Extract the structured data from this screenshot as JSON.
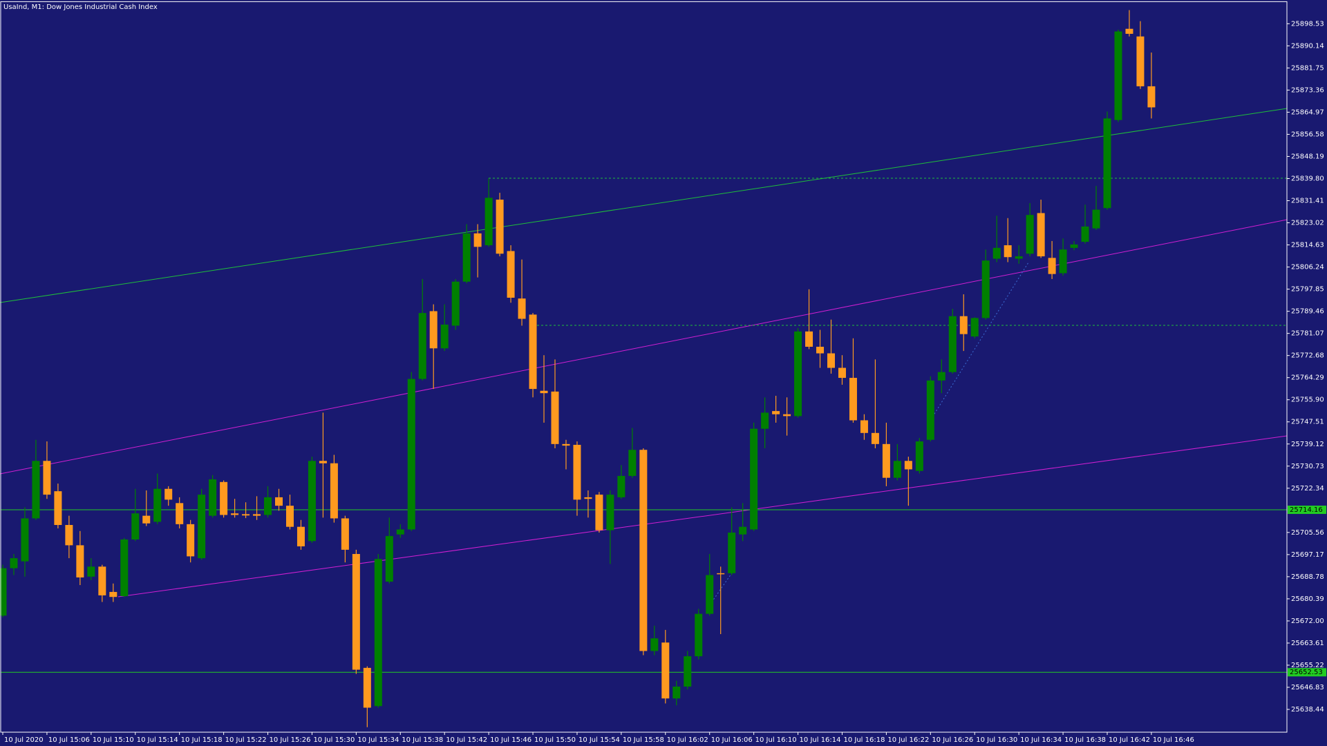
{
  "chart_data": {
    "type": "candlestick",
    "title": "UsaInd, M1:  Dow Jones Industrial Cash Index",
    "categories": [
      "10 Jul 2020",
      null,
      null,
      null,
      "10 Jul 15:06",
      null,
      null,
      null,
      "10 Jul 15:10",
      null,
      null,
      null,
      "10 Jul 15:14",
      null,
      null,
      null,
      "10 Jul 15:18",
      null,
      null,
      null,
      "10 Jul 15:22",
      null,
      null,
      null,
      "10 Jul 15:26",
      null,
      null,
      null,
      "10 Jul 15:30",
      null,
      null,
      null,
      "10 Jul 15:34",
      null,
      null,
      null,
      "10 Jul 15:38",
      null,
      null,
      null,
      "10 Jul 15:42",
      null,
      null,
      null,
      "10 Jul 15:46",
      null,
      null,
      null,
      "10 Jul 15:50",
      null,
      null,
      null,
      "10 Jul 15:54",
      null,
      null,
      null,
      "10 Jul 15:58",
      null,
      null,
      null,
      "10 Jul 16:02",
      null,
      null,
      null,
      "10 Jul 16:06",
      null,
      null,
      null,
      "10 Jul 16:10",
      null,
      null,
      null,
      "10 Jul 16:14",
      null,
      null,
      null,
      "10 Jul 16:18",
      null,
      null,
      null,
      "10 Jul 16:22",
      null,
      null,
      null,
      "10 Jul 16:26",
      null,
      null,
      null,
      "10 Jul 16:30",
      null,
      null,
      null,
      "10 Jul 16:34",
      null,
      null,
      null,
      "10 Jul 16:38",
      null,
      null,
      null,
      "10 Jul 16:42",
      null,
      null,
      null,
      "10 Jul 16:46"
    ],
    "open": [
      25674.0,
      25692.0,
      25694.6,
      25710.9,
      25732.7,
      25721.2,
      25708.4,
      25700.7,
      25688.8,
      25692.6,
      25683.0,
      25681.4,
      25702.9,
      25711.9,
      25709.6,
      25722.1,
      25716.7,
      25708.7,
      25695.8,
      25711.9,
      25724.7,
      25712.8,
      25712.5,
      25712.5,
      25712.2,
      25718.9,
      25715.7,
      25707.7,
      25702.3,
      25732.7,
      25731.8,
      25710.9,
      25697.4,
      25654.2,
      25639.7,
      25686.9,
      25704.8,
      25706.7,
      25763.8,
      25789.5,
      25775.4,
      25784.0,
      25800.7,
      25819.0,
      25814.5,
      25831.8,
      25812.3,
      25794.3,
      25788.2,
      25759.3,
      25759.0,
      25739.1,
      25738.8,
      25718.9,
      25719.9,
      25706.4,
      25718.9,
      25727.0,
      25736.9,
      25660.6,
      25663.8,
      25642.6,
      25647.1,
      25658.6,
      25674.7,
      25690.1,
      25690.1,
      25704.8,
      25706.7,
      25744.9,
      25751.6,
      25750.4,
      25749.7,
      25781.8,
      25776.0,
      25773.5,
      25768.0,
      25764.2,
      25748.1,
      25743.3,
      25739.1,
      25726.3,
      25732.7,
      25728.9,
      25740.7,
      25763.2,
      25766.4,
      25787.6,
      25779.9,
      25786.9,
      25809.4,
      25814.5,
      25809.4,
      25811.3,
      25826.7,
      25809.7,
      25803.9,
      25813.5,
      25815.8,
      25820.9,
      25828.6,
      25862.0,
      25896.6,
      25893.7,
      25874.8
    ],
    "high": [
      25693.3,
      25697.4,
      25715.1,
      25740.7,
      25740.1,
      25724.1,
      25711.9,
      25706.1,
      25695.8,
      25693.3,
      25686.2,
      25703.5,
      25722.1,
      25721.5,
      25727.9,
      25723.1,
      25718.9,
      25710.3,
      25722.1,
      25727.3,
      25725.3,
      25718.3,
      25717.0,
      25719.3,
      25723.1,
      25722.1,
      25719.9,
      25710.3,
      25734.3,
      25751.0,
      25735.0,
      25711.9,
      25699.0,
      25654.8,
      25697.4,
      25711.2,
      25708.7,
      25766.4,
      25801.7,
      25792.1,
      25792.1,
      25801.7,
      25822.5,
      25822.5,
      25839.8,
      25834.4,
      25814.5,
      25809.1,
      25788.8,
      25772.8,
      25771.2,
      25740.7,
      25740.1,
      25721.5,
      25720.9,
      25721.5,
      25731.1,
      25745.2,
      25737.5,
      25670.2,
      25668.6,
      25649.3,
      25660.6,
      25676.6,
      25697.4,
      25692.6,
      25715.1,
      25716.7,
      25747.2,
      25756.8,
      25757.4,
      25756.8,
      25783.1,
      25797.8,
      25782.4,
      25786.3,
      25772.8,
      25779.2,
      25750.4,
      25771.2,
      25747.2,
      25739.1,
      25734.3,
      25741.4,
      25764.8,
      25771.2,
      25790.4,
      25795.9,
      25787.2,
      25812.9,
      25825.7,
      25824.8,
      25814.5,
      25830.5,
      25831.8,
      25816.1,
      25817.1,
      25816.1,
      25829.9,
      25837.0,
      25865.2,
      25896.3,
      25903.7,
      25899.5,
      25887.6
    ],
    "low": [
      25673.4,
      25689.4,
      25688.8,
      25710.3,
      25718.3,
      25707.1,
      25695.8,
      25685.6,
      25687.5,
      25679.2,
      25679.2,
      25681.1,
      25702.3,
      25708.0,
      25708.7,
      25715.7,
      25707.1,
      25694.2,
      25695.2,
      25711.2,
      25711.2,
      25711.2,
      25711.0,
      25710.3,
      25711.2,
      25713.8,
      25706.7,
      25699.0,
      25701.6,
      25711.2,
      25709.3,
      25694.2,
      25651.9,
      25631.7,
      25639.1,
      25686.2,
      25703.5,
      25706.1,
      25763.2,
      25760.0,
      25774.4,
      25782.4,
      25800.1,
      25802.3,
      25813.9,
      25810.3,
      25792.7,
      25784.0,
      25756.8,
      25747.2,
      25737.5,
      25729.5,
      25711.9,
      25711.2,
      25705.5,
      25693.6,
      25718.3,
      25726.3,
      25659.0,
      25659.0,
      25640.7,
      25640.0,
      25646.1,
      25657.4,
      25674.0,
      25667.0,
      25689.4,
      25702.3,
      25706.1,
      25737.5,
      25747.2,
      25742.3,
      25749.1,
      25775.1,
      25768.0,
      25765.8,
      25761.6,
      25747.2,
      25740.7,
      25737.5,
      25723.1,
      25725.3,
      25715.7,
      25727.9,
      25740.1,
      25758.4,
      25765.8,
      25774.4,
      25779.2,
      25786.3,
      25808.1,
      25808.1,
      25807.5,
      25810.3,
      25809.7,
      25801.7,
      25803.0,
      25812.6,
      25815.1,
      25820.3,
      25828.0,
      25861.3,
      25893.7,
      25873.8,
      25862.6
    ],
    "close": [
      25692.0,
      25695.8,
      25710.9,
      25732.7,
      25719.9,
      25708.4,
      25700.7,
      25688.5,
      25692.6,
      25681.7,
      25681.1,
      25702.9,
      25712.8,
      25709.0,
      25722.1,
      25718.0,
      25708.7,
      25696.5,
      25719.9,
      25725.7,
      25712.2,
      25712.2,
      25712.0,
      25711.9,
      25718.9,
      25715.7,
      25707.7,
      25700.3,
      25732.7,
      25731.8,
      25710.9,
      25699.0,
      25653.5,
      25639.1,
      25695.5,
      25704.2,
      25706.7,
      25763.8,
      25788.8,
      25775.4,
      25784.4,
      25800.7,
      25819.0,
      25813.9,
      25832.5,
      25811.3,
      25794.6,
      25786.6,
      25760.0,
      25758.4,
      25739.1,
      25738.5,
      25718.0,
      25718.3,
      25706.4,
      25719.9,
      25727.0,
      25736.9,
      25660.6,
      25665.4,
      25642.6,
      25647.1,
      25658.6,
      25674.7,
      25689.4,
      25689.7,
      25705.5,
      25707.7,
      25744.9,
      25751.0,
      25750.4,
      25749.7,
      25781.8,
      25776.0,
      25773.5,
      25768.0,
      25764.2,
      25748.1,
      25743.3,
      25739.1,
      25726.3,
      25732.7,
      25729.5,
      25740.1,
      25763.2,
      25766.4,
      25787.6,
      25780.8,
      25786.9,
      25808.7,
      25813.5,
      25810.0,
      25810.3,
      25826.0,
      25810.3,
      25803.6,
      25812.9,
      25814.8,
      25821.6,
      25828.0,
      25862.6,
      25895.6,
      25894.7,
      25874.8,
      25866.8
    ],
    "up_color": "#008000",
    "down_color": "#ff9a1f",
    "ylim": [
      25629.8,
      25906.9
    ],
    "yticks": [
      25898.53,
      25890.14,
      25881.75,
      25873.36,
      25864.97,
      25856.58,
      25848.19,
      {
        "value": 25839.8,
        "label": "25839.80"
      },
      25831.41,
      25823.02,
      25814.63,
      25806.24,
      25797.85,
      25789.46,
      25781.07,
      25772.68,
      25764.29,
      {
        "value": 25755.9,
        "label": "25755.90"
      },
      25747.51,
      25739.12,
      25730.73,
      25722.34,
      25705.56,
      25697.17,
      25688.78,
      25680.39,
      {
        "value": 25672,
        "label": "25672.00"
      },
      25663.61,
      25655.22,
      25646.83,
      25638.44
    ],
    "levels": [
      25714.16,
      25652.53
    ],
    "level_color": "#22cc22",
    "grid": false
  }
}
